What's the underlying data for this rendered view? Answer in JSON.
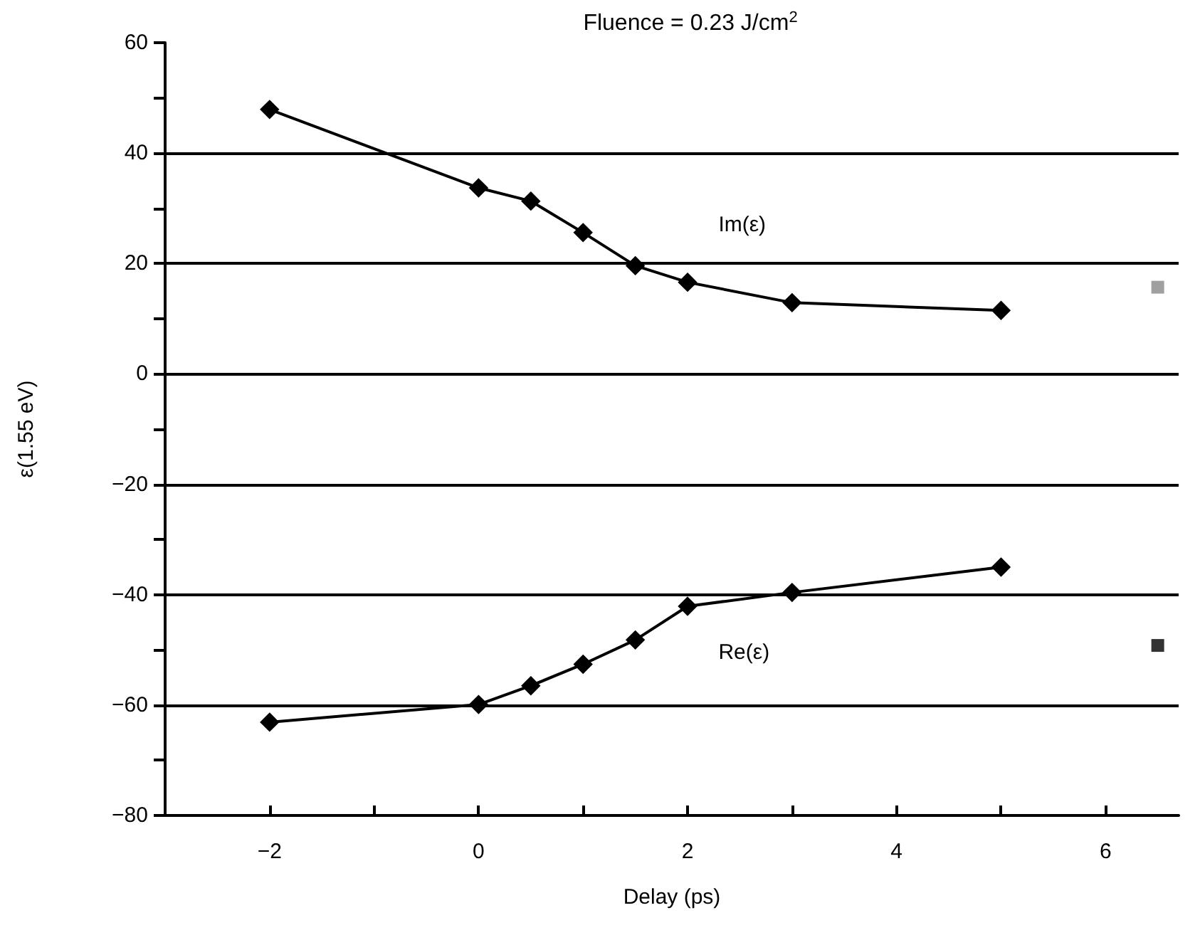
{
  "chart_data": {
    "type": "line",
    "title": "Fluence = 0.23 J/cm$^{2}$",
    "xlabel": "Delay (ps)",
    "ylabel": "ε(1.55 eV)",
    "series": [
      {
        "name": "Im(ε)",
        "color": "#000000",
        "x": [
          -2,
          0,
          0.5,
          1,
          1.5,
          2,
          3,
          5
        ],
        "values": [
          47.9,
          33.7,
          31.3,
          25.6,
          19.6,
          16.6,
          12.9,
          11.5
        ]
      },
      {
        "name": "Re(ε)",
        "color": "#000000",
        "x": [
          -2,
          0,
          0.5,
          1,
          1.5,
          2,
          3,
          5
        ],
        "values": [
          -63.1,
          -59.9,
          -56.5,
          -52.6,
          -48.2,
          -42.1,
          -39.6,
          -35.0
        ]
      },
      {
        "type": "scatter",
        "marker": "square",
        "color": "#888888",
        "x": [
          6.5
        ],
        "values": [
          15.7
        ]
      },
      {
        "type": "scatter",
        "marker": "square",
        "color": "#000000",
        "x": [
          6.5
        ],
        "values": [
          -49.2
        ]
      }
    ],
    "marker": "diamond",
    "line_style": "solid",
    "grid": "y",
    "legend": false,
    "xlim": [
      -3,
      6.7
    ],
    "xticks": [
      -2,
      {
        "value": -1,
        "label": null
      },
      0,
      {
        "value": 1,
        "label": null
      },
      2,
      {
        "value": 3,
        "label": null
      },
      4,
      {
        "value": 5,
        "label": null
      },
      6
    ],
    "ylim": [
      -80,
      60
    ],
    "yticks": [
      -80,
      {
        "value": -70,
        "label": null
      },
      -60,
      {
        "value": -50,
        "label": null
      },
      -40,
      {
        "value": -30,
        "label": null
      },
      -20,
      {
        "value": -10,
        "label": null
      },
      0,
      {
        "value": 10,
        "label": null
      },
      20,
      {
        "value": 30,
        "label": null
      },
      40,
      {
        "value": 50,
        "label": null
      },
      60
    ]
  }
}
